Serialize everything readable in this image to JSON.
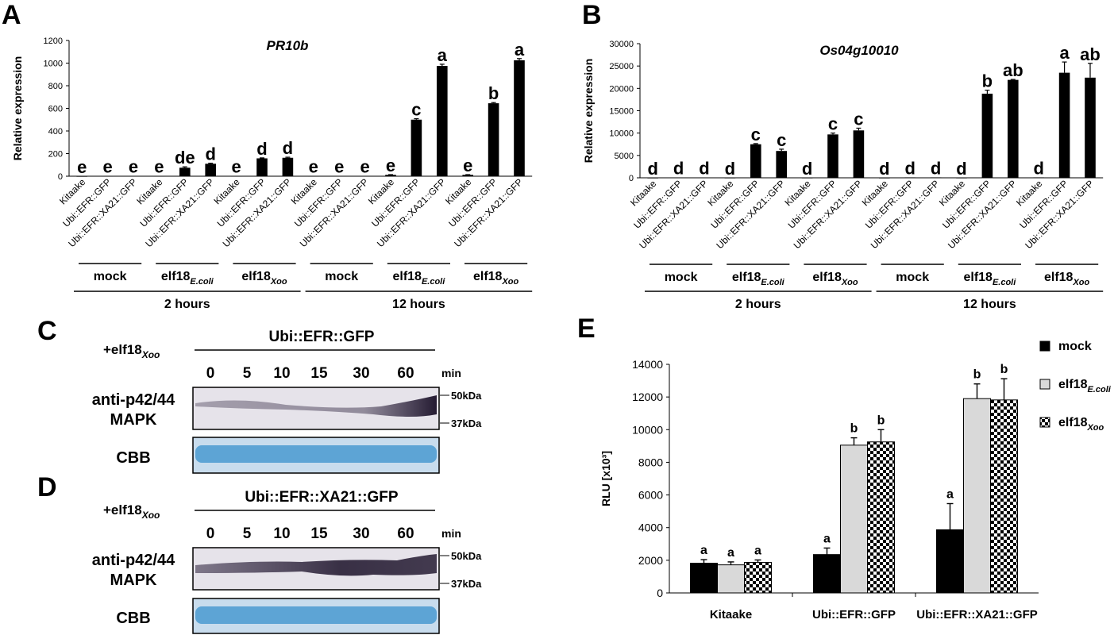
{
  "panel_letters": {
    "a": "A",
    "b": "B",
    "c": "C",
    "d": "D",
    "e": "E"
  },
  "chart_data": [
    {
      "panel": "A",
      "type": "bar",
      "title": "PR10b",
      "ylabel": "Relative expression",
      "ylim": [
        0,
        1200
      ],
      "yticks": [
        0,
        200,
        400,
        600,
        800,
        1000,
        1200
      ],
      "categories": [
        "Kitaake",
        "Ubi::EFR::GFP",
        "Ubi::EFR::XA21::GFP",
        "Kitaake",
        "Ubi::EFR::GFP",
        "Ubi::EFR::XA21::GFP",
        "Kitaake",
        "Ubi::EFR::GFP",
        "Ubi::EFR::XA21::GFP",
        "Kitaake",
        "Ubi::EFR::GFP",
        "Ubi::EFR::XA21::GFP",
        "Kitaake",
        "Ubi::EFR::GFP",
        "Ubi::EFR::XA21::GFP",
        "Kitaake",
        "Ubi::EFR::GFP",
        "Ubi::EFR::XA21::GFP"
      ],
      "values": [
        1,
        2,
        3,
        2,
        75,
        110,
        2,
        158,
        163,
        2,
        3,
        3,
        12,
        500,
        975,
        12,
        645,
        1025
      ],
      "errors": [
        0,
        0,
        0,
        0,
        8,
        5,
        0,
        4,
        5,
        0,
        0,
        0,
        2,
        8,
        15,
        2,
        6,
        15
      ],
      "letters": [
        "e",
        "e",
        "e",
        "e",
        "de",
        "d",
        "e",
        "d",
        "d",
        "e",
        "e",
        "e",
        "e",
        "c",
        "a",
        "e",
        "b",
        "a"
      ],
      "treatments": [
        {
          "name": "mock",
          "sub": ""
        },
        {
          "name": "elf18",
          "sub": "E.coli"
        },
        {
          "name": "elf18",
          "sub": "Xoo"
        },
        {
          "name": "mock",
          "sub": ""
        },
        {
          "name": "elf18",
          "sub": "E.coli"
        },
        {
          "name": "elf18",
          "sub": "Xoo"
        }
      ],
      "times": [
        "2 hours",
        "12 hours"
      ]
    },
    {
      "panel": "B",
      "type": "bar",
      "title": "Os04g10010",
      "ylabel": "Relative expression",
      "ylim": [
        0,
        30000
      ],
      "yticks": [
        0,
        5000,
        10000,
        15000,
        20000,
        25000,
        30000
      ],
      "categories": [
        "Kitaake",
        "Ubi::EFR::GFP",
        "Ubi::EFR::XA21::GFP",
        "Kitaake",
        "Ubi::EFR::GFP",
        "Ubi::EFR::XA21::GFP",
        "Kitaake",
        "Ubi::EFR::GFP",
        "Ubi::EFR::XA21::GFP",
        "Kitaake",
        "Ubi::EFR::GFP",
        "Ubi::EFR::XA21::GFP",
        "Kitaake",
        "Ubi::EFR::GFP",
        "Ubi::EFR::XA21::GFP",
        "Kitaake",
        "Ubi::EFR::GFP",
        "Ubi::EFR::XA21::GFP"
      ],
      "values": [
        20,
        60,
        60,
        30,
        7500,
        6000,
        30,
        9700,
        10600,
        20,
        100,
        100,
        30,
        18800,
        21900,
        100,
        23500,
        22400
      ],
      "errors": [
        0,
        0,
        0,
        0,
        150,
        400,
        0,
        300,
        500,
        0,
        0,
        0,
        0,
        800,
        100,
        0,
        2400,
        3200
      ],
      "letters": [
        "d",
        "d",
        "d",
        "d",
        "c",
        "c",
        "d",
        "c",
        "c",
        "d",
        "d",
        "d",
        "d",
        "b",
        "ab",
        "d",
        "a",
        "ab"
      ],
      "treatments": [
        {
          "name": "mock",
          "sub": ""
        },
        {
          "name": "elf18",
          "sub": "E.coli"
        },
        {
          "name": "elf18",
          "sub": "Xoo"
        },
        {
          "name": "mock",
          "sub": ""
        },
        {
          "name": "elf18",
          "sub": "E.coli"
        },
        {
          "name": "elf18",
          "sub": "Xoo"
        }
      ],
      "times": [
        "2 hours",
        "12 hours"
      ]
    },
    {
      "panel": "E",
      "type": "bar",
      "ylabel": "RLU [x10³]",
      "ylim": [
        0,
        14000
      ],
      "yticks": [
        0,
        2000,
        4000,
        6000,
        8000,
        10000,
        12000,
        14000
      ],
      "categories": [
        "Kitaake",
        "Ubi::EFR::GFP",
        "Ubi::EFR::XA21::GFP"
      ],
      "series": [
        {
          "name": "mock",
          "sub": "",
          "values": [
            1820,
            2350,
            3870
          ],
          "errors": [
            220,
            400,
            1600
          ],
          "letters": [
            "a",
            "a",
            "a"
          ],
          "pattern": "solid"
        },
        {
          "name": "elf18",
          "sub": "E.coli",
          "values": [
            1720,
            9050,
            11900
          ],
          "errors": [
            180,
            450,
            900
          ],
          "letters": [
            "a",
            "b",
            "b"
          ],
          "pattern": "light"
        },
        {
          "name": "elf18",
          "sub": "Xoo",
          "values": [
            1870,
            9250,
            11820
          ],
          "errors": [
            150,
            750,
            1300
          ],
          "letters": [
            "a",
            "b",
            "b"
          ],
          "pattern": "checker"
        }
      ],
      "legend_position": "top-right"
    }
  ],
  "blots": {
    "C": {
      "treatment": "+elf18",
      "treatment_sub": "Xoo",
      "construct": "Ubi::EFR::GFP",
      "timepoints": [
        "0",
        "5",
        "10",
        "15",
        "30",
        "60"
      ],
      "time_unit": "min",
      "antibody_line1": "anti-p42/44",
      "antibody_line2": "MAPK",
      "stain": "CBB",
      "markers": [
        "50kDa",
        "37kDa"
      ]
    },
    "D": {
      "treatment": "+elf18",
      "treatment_sub": "Xoo",
      "construct": "Ubi::EFR::XA21::GFP",
      "timepoints": [
        "0",
        "5",
        "10",
        "15",
        "30",
        "60"
      ],
      "time_unit": "min",
      "antibody_line1": "anti-p42/44",
      "antibody_line2": "MAPK",
      "stain": "CBB",
      "markers": [
        "50kDa",
        "37kDa"
      ]
    }
  },
  "colors": {
    "bar": "#000000",
    "light_bar": "#d9d9d9",
    "blot_bg": "#e4e2e8",
    "band": "#2a1f3a",
    "cbb": "#4a9ad0",
    "cbb_bg": "#c8dced"
  }
}
